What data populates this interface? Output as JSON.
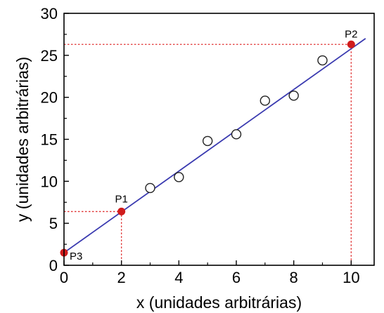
{
  "chart_data": {
    "type": "scatter",
    "xlabel": "x (unidades arbitrárias)",
    "ylabel": "y (unidades arbitrárias)",
    "xlim": [
      0,
      10.8
    ],
    "ylim": [
      0,
      30
    ],
    "xticks": [
      0,
      2,
      4,
      6,
      8,
      10
    ],
    "yticks": [
      0,
      5,
      10,
      15,
      20,
      25,
      30
    ],
    "grid": false,
    "series": [
      {
        "marker": "open-circle",
        "x": [
          3,
          4,
          5,
          6,
          7,
          8,
          9
        ],
        "y": [
          9.2,
          10.5,
          14.8,
          15.6,
          19.6,
          20.2,
          24.4
        ]
      }
    ],
    "fit_line": {
      "color": "#3a3ab0",
      "x": [
        0,
        10.5
      ],
      "y": [
        1.5,
        27.0
      ]
    },
    "highlighted_points": [
      {
        "label": "P1",
        "x": 2,
        "y": 6.4,
        "color": "#d01c1c"
      },
      {
        "label": "P2",
        "x": 10,
        "y": 26.3,
        "color": "#d01c1c"
      },
      {
        "label": "P3",
        "x": 0,
        "y": 1.5,
        "color": "#d01c1c"
      }
    ],
    "guide_lines": {
      "style": "dotted",
      "color": "#e03030"
    }
  }
}
